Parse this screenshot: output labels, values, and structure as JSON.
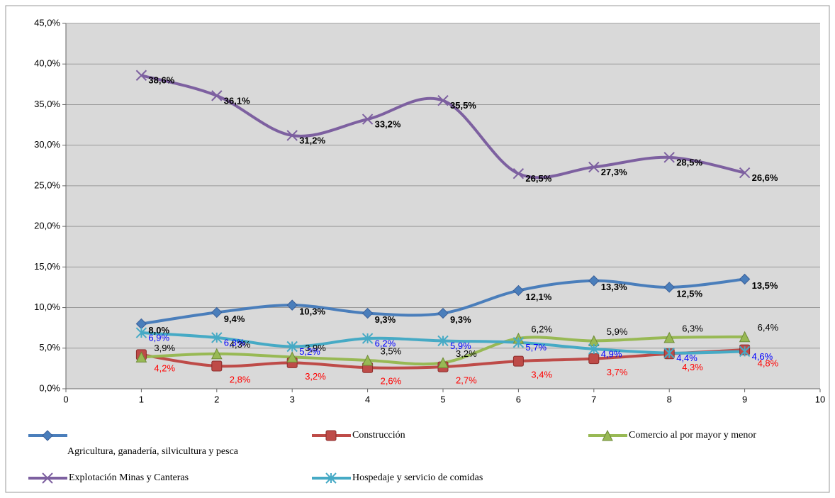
{
  "chart_data": {
    "type": "line",
    "x": [
      1,
      2,
      3,
      4,
      5,
      6,
      7,
      8,
      9
    ],
    "xlim": [
      0,
      10
    ],
    "xticks": [
      0,
      1,
      2,
      3,
      4,
      5,
      6,
      7,
      8,
      9,
      10
    ],
    "ylim": [
      0,
      45
    ],
    "yticks": [
      {
        "value": 0,
        "label": "0,0%"
      },
      {
        "value": 5,
        "label": "5,0%"
      },
      {
        "value": 10,
        "label": "10,0%"
      },
      {
        "value": 15,
        "label": "15,0%"
      },
      {
        "value": 20,
        "label": "20,0%"
      },
      {
        "value": 25,
        "label": "25,0%"
      },
      {
        "value": 30,
        "label": "30,0%"
      },
      {
        "value": 35,
        "label": "35,0%"
      },
      {
        "value": 40,
        "label": "40,0%"
      },
      {
        "value": 45,
        "label": "45,0%"
      }
    ],
    "grid": true,
    "smooth": true,
    "legend": "bottom",
    "series": [
      {
        "name": "Agricultura, ganadería, silvicultura y pesca",
        "color": "#4a7ebb",
        "marker": "diamond",
        "label_color": "#000000",
        "label_bold": true,
        "values": [
          8.0,
          9.4,
          10.3,
          9.3,
          9.3,
          12.1,
          13.3,
          12.5,
          13.5
        ],
        "value_labels": [
          "8,0%",
          "9,4%",
          "10,3%",
          "9,3%",
          "9,3%",
          "12,1%",
          "13,3%",
          "12,5%",
          "13,5%"
        ]
      },
      {
        "name": "Construcción",
        "color": "#be4b48",
        "marker": "square",
        "label_color": "#ff0000",
        "label_bold": false,
        "values": [
          4.2,
          2.8,
          3.2,
          2.6,
          2.7,
          3.4,
          3.7,
          4.3,
          4.8
        ],
        "value_labels": [
          "4,2%",
          "2,8%",
          "3,2%",
          "2,6%",
          "2,7%",
          "3,4%",
          "3,7%",
          "4,3%",
          "4,8%"
        ]
      },
      {
        "name": "Comercio al por mayor y menor",
        "color": "#98b954",
        "marker": "triangle",
        "label_color": "#000000",
        "label_bold": false,
        "values": [
          3.9,
          4.3,
          3.9,
          3.5,
          3.2,
          6.2,
          5.9,
          6.3,
          6.4
        ],
        "value_labels": [
          "3,9%",
          "4,3%",
          "3,9%",
          "3,5%",
          "3,2%",
          "6,2%",
          "5,9%",
          "6,3%",
          "6,4%"
        ]
      },
      {
        "name": "Explotación Minas y Canteras",
        "color": "#7d60a0",
        "marker": "x",
        "label_color": "#000000",
        "label_bold": true,
        "values": [
          38.6,
          36.1,
          31.2,
          33.2,
          35.5,
          26.5,
          27.3,
          28.5,
          26.6
        ],
        "value_labels": [
          "38,6%",
          "36,1%",
          "31,2%",
          "33,2%",
          "35,5%",
          "26,5%",
          "27,3%",
          "28,5%",
          "26,6%"
        ]
      },
      {
        "name": "Hospedaje y servicio de comidas",
        "color": "#46aac5",
        "marker": "star",
        "label_color": "#0000ff",
        "label_bold": false,
        "values": [
          6.9,
          6.3,
          5.2,
          6.2,
          5.9,
          5.7,
          4.9,
          4.4,
          4.6
        ],
        "value_labels": [
          "6,9%",
          "6,3%",
          "5,2%",
          "6,2%",
          "5,9%",
          "5,7%",
          "4,9%",
          "4,4%",
          "4,6%"
        ]
      }
    ]
  }
}
